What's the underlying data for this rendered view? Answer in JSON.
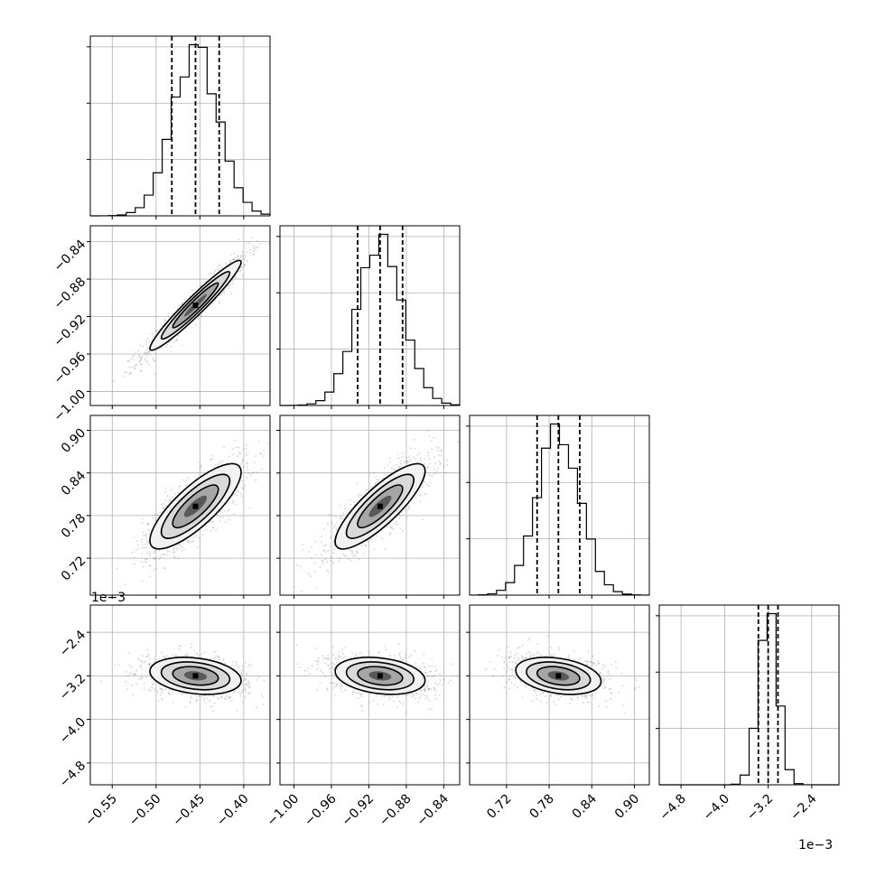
{
  "chart_data": {
    "type": "corner",
    "parameters": [
      {
        "range": [
          -0.575,
          -0.37
        ],
        "ticks": [
          -0.55,
          -0.5,
          -0.45,
          -0.4
        ],
        "tick_labels": [
          "−0.55",
          "−0.50",
          "−0.45",
          "−0.40"
        ],
        "center": -0.455,
        "sigma": 0.026,
        "quantiles": [
          -0.482,
          -0.455,
          -0.428
        ]
      },
      {
        "range": [
          -1.015,
          -0.823
        ],
        "ticks": [
          -1.0,
          -0.96,
          -0.92,
          -0.88,
          -0.84
        ],
        "tick_labels": [
          "−1.00",
          "−0.96",
          "−0.92",
          "−0.88",
          "−0.84"
        ],
        "center": -0.908,
        "sigma": 0.024,
        "quantiles": [
          -0.932,
          -0.908,
          -0.884
        ]
      },
      {
        "range": [
          0.668,
          0.921
        ],
        "ticks": [
          0.72,
          0.78,
          0.84,
          0.9
        ],
        "tick_labels": [
          "0.72",
          "0.78",
          "0.84",
          "0.90"
        ],
        "center": 0.793,
        "sigma": 0.03,
        "quantiles": [
          0.763,
          0.793,
          0.823
        ]
      },
      {
        "range": [
          -5.2,
          -1.9
        ],
        "ticks": [
          -4.8,
          -4.0,
          -3.2,
          -2.4
        ],
        "tick_labels": [
          "−4.8",
          "−4.0",
          "−3.2",
          "−2.4"
        ],
        "center": -3.2,
        "sigma": 0.17,
        "quantiles": [
          -3.38,
          -3.2,
          -3.02
        ]
      }
    ],
    "offset_labels": {
      "row4_y": "1e−3",
      "col4_x": "1e−3"
    },
    "correlations": [
      {
        "i": 1,
        "j": 0,
        "rho": 0.96
      },
      {
        "i": 2,
        "j": 0,
        "rho": 0.8
      },
      {
        "i": 2,
        "j": 1,
        "rho": 0.83
      },
      {
        "i": 3,
        "j": 0,
        "rho": -0.25
      },
      {
        "i": 3,
        "j": 1,
        "rho": -0.25
      },
      {
        "i": 3,
        "j": 2,
        "rho": -0.3
      }
    ],
    "grid": true,
    "contour_levels": 3,
    "hist_color": "#000000",
    "scatter_color": "#808080"
  }
}
